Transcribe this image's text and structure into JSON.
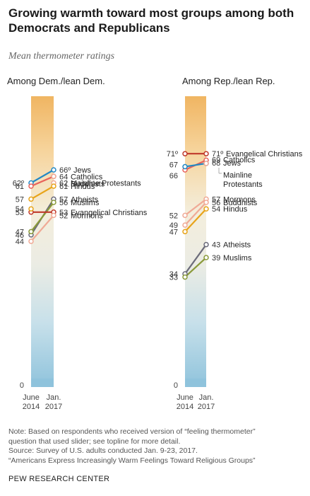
{
  "title": "Growing warmth toward most groups among both Democrats and Republicans",
  "subtitle": "Mean thermometer ratings",
  "notes": [
    "Note: Based on respondents who received version of “feeling thermometer”",
    "question that used slider; see topline for more detail.",
    "Source: Survey of U.S. adults conducted Jan. 9-23, 2017.",
    "“Americans Express Increasingly Warm  Feelings Toward Religious Groups”"
  ],
  "organization": "PEW RESEARCH CENTER",
  "colors": {
    "Jews": "#2288c4",
    "Catholics": "#e8625a",
    "Buddhists": "#f0aa96",
    "Mainline Protestants": "#f0aa96",
    "Hindus": "#e8a41a",
    "Atheists": "#6b6b7a",
    "Muslims": "#8a9a3a",
    "Evangelical Christians": "#c0392b",
    "Mormons": "#f0aa96"
  },
  "chart_data": [
    {
      "type": "line",
      "title": "Among Dem./lean Dem.",
      "x": [
        "June 2014",
        "Jan. 2017"
      ],
      "ylim": [
        0,
        90
      ],
      "zero_label": "0",
      "series": [
        {
          "name": "Jews",
          "values": [
            62,
            66
          ],
          "left_label": "62º",
          "right_label": "66º"
        },
        {
          "name": "Catholics",
          "values": [
            61,
            64
          ],
          "left_label": "61",
          "right_label": "64"
        },
        {
          "name": "Buddhists",
          "values": [
            null,
            64
          ],
          "left_label": "",
          "right_label": ""
        },
        {
          "name": "Mainline Protestants",
          "values": [
            null,
            62
          ],
          "left_label": "",
          "right_label": "62"
        },
        {
          "name": "Hindus",
          "values": [
            57,
            61
          ],
          "left_label": "57",
          "right_label": "61"
        },
        {
          "name": "Atheists",
          "values": [
            46,
            57
          ],
          "left_label": "46",
          "right_label": "57"
        },
        {
          "name": "Muslims",
          "values": [
            47,
            56
          ],
          "left_label": "47",
          "right_label": "56"
        },
        {
          "name": "Evangelical Christians",
          "values": [
            53,
            53
          ],
          "left_label": "53",
          "right_label": "53"
        },
        {
          "name": "Mormons",
          "values": [
            44,
            52
          ],
          "left_label": "44",
          "right_label": "52"
        },
        {
          "name": "",
          "values": [
            54,
            null
          ],
          "left_label": "54",
          "right_label": ""
        }
      ]
    },
    {
      "type": "line",
      "title": "Among Rep./lean Rep.",
      "x": [
        "June 2014",
        "Jan. 2017"
      ],
      "ylim": [
        0,
        90
      ],
      "zero_label": "0",
      "series": [
        {
          "name": "Evangelical Christians",
          "values": [
            71,
            71
          ],
          "left_label": "71º",
          "right_label": "71º"
        },
        {
          "name": "Catholics",
          "values": [
            66,
            69
          ],
          "left_label": "66",
          "right_label": "69"
        },
        {
          "name": "Jews",
          "values": [
            67,
            68
          ],
          "left_label": "67",
          "right_label": "68"
        },
        {
          "name": "Mainline Protestants",
          "values": [
            null,
            68
          ],
          "left_label": "",
          "right_label": ""
        },
        {
          "name": "Mormons",
          "values": [
            52,
            57
          ],
          "left_label": "52",
          "right_label": "57"
        },
        {
          "name": "Buddhists",
          "values": [
            49,
            56
          ],
          "left_label": "49",
          "right_label": "56"
        },
        {
          "name": "Hindus",
          "values": [
            47,
            54
          ],
          "left_label": "47",
          "right_label": "54"
        },
        {
          "name": "Atheists",
          "values": [
            34,
            43
          ],
          "left_label": "34",
          "right_label": "43"
        },
        {
          "name": "Muslims",
          "values": [
            33,
            39
          ],
          "left_label": "33",
          "right_label": "39"
        }
      ]
    }
  ]
}
